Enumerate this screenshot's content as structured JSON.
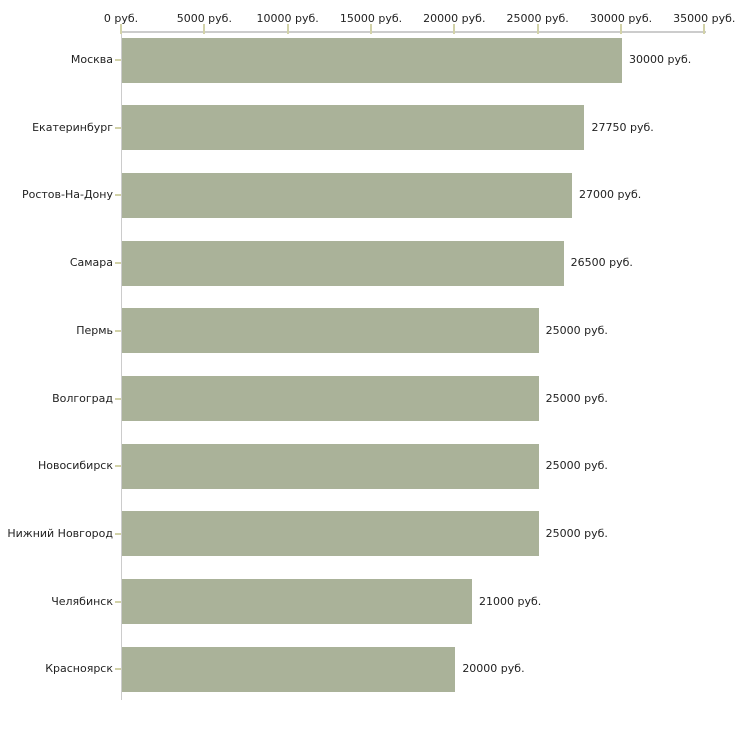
{
  "chart_data": {
    "type": "bar",
    "orientation": "horizontal",
    "title": "",
    "categories": [
      "Москва",
      "Екатеринбург",
      "Ростов-На-Дону",
      "Самара",
      "Пермь",
      "Волгоград",
      "Новосибирск",
      "Нижний Новгород",
      "Челябинск",
      "Красноярск"
    ],
    "values": [
      30000,
      27750,
      27000,
      26500,
      25000,
      25000,
      25000,
      25000,
      21000,
      20000
    ],
    "value_labels": [
      "30000 руб.",
      "27750 руб.",
      "27000 руб.",
      "26500 руб.",
      "25000 руб.",
      "25000 руб.",
      "25000 руб.",
      "25000 руб.",
      "21000 руб.",
      "20000 руб."
    ],
    "x_axis": {
      "position": "top",
      "range": [
        0,
        35000
      ],
      "tick_step": 5000,
      "tick_values": [
        0,
        5000,
        10000,
        15000,
        20000,
        25000,
        30000,
        35000
      ],
      "tick_labels": [
        "0 руб.",
        "5000 руб.",
        "10000 руб.",
        "15000 руб.",
        "20000 руб.",
        "25000 руб.",
        "30000 руб.",
        "35000 руб."
      ]
    },
    "grid": false,
    "legend": false,
    "colors": {
      "bar": "#aab299",
      "axis_line": "#cccccc",
      "tick_mark": "#d2d2a8",
      "text": "#222222",
      "background": "#ffffff"
    }
  }
}
